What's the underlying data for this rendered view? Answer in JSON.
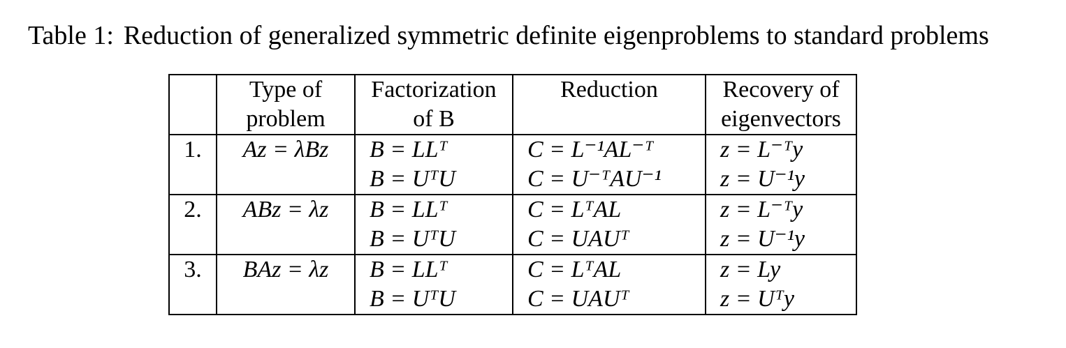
{
  "caption": {
    "label": "Table 1:",
    "text": "Reduction of generalized symmetric definite eigenproblems to standard problems"
  },
  "table": {
    "headers": [
      {
        "line1": "",
        "line2": ""
      },
      {
        "line1": "Type of",
        "line2": "problem"
      },
      {
        "line1": "Factorization",
        "line2": "of B"
      },
      {
        "line1": "Reduction",
        "line2": ""
      },
      {
        "line1": "Recovery of",
        "line2": "eigenvectors"
      }
    ],
    "groups": [
      {
        "num": "1.",
        "problem": "Az = λBz",
        "rows": [
          {
            "factorization": "B = LLᵀ",
            "reduction": "C = L⁻¹AL⁻ᵀ",
            "recovery": "z = L⁻ᵀy"
          },
          {
            "factorization": "B = UᵀU",
            "reduction": "C = U⁻ᵀAU⁻¹",
            "recovery": "z = U⁻¹y"
          }
        ]
      },
      {
        "num": "2.",
        "problem": "ABz = λz",
        "rows": [
          {
            "factorization": "B = LLᵀ",
            "reduction": "C = LᵀAL",
            "recovery": "z = L⁻ᵀy"
          },
          {
            "factorization": "B = UᵀU",
            "reduction": "C = UAUᵀ",
            "recovery": "z = U⁻¹y"
          }
        ]
      },
      {
        "num": "3.",
        "problem": "BAz = λz",
        "rows": [
          {
            "factorization": "B = LLᵀ",
            "reduction": "C = LᵀAL",
            "recovery": "z = Ly"
          },
          {
            "factorization": "B = UᵀU",
            "reduction": "C = UAUᵀ",
            "recovery": "z = Uᵀy"
          }
        ]
      }
    ]
  }
}
